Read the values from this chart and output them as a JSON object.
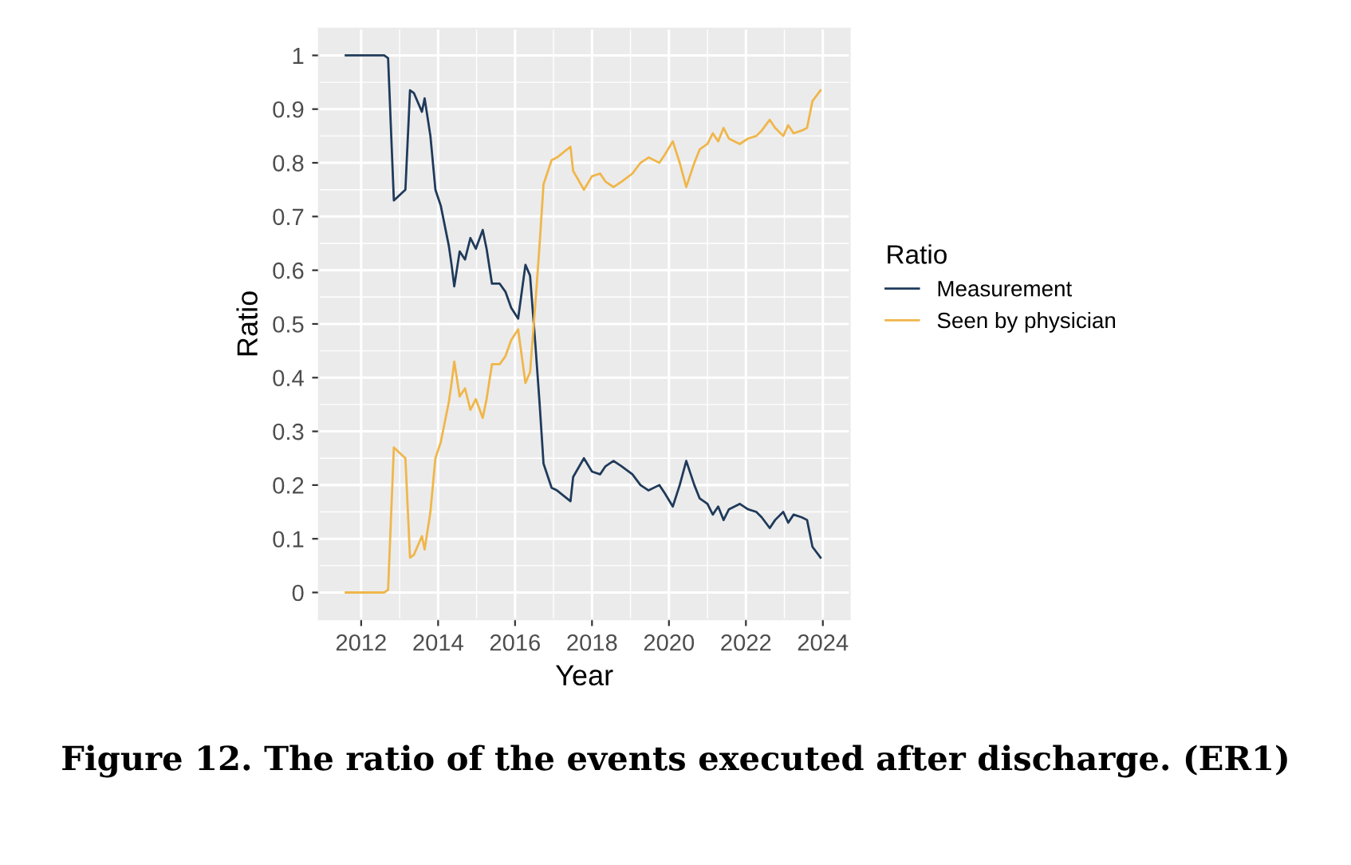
{
  "chart_data": {
    "type": "line",
    "title": "Figure 12. The ratio of the events executed after discharge. (ER1)",
    "xlabel": "Year",
    "ylabel": "Ratio",
    "legend_title": "Ratio",
    "x": [
      2011.6,
      2012.0,
      2012.6,
      2012.7,
      2012.85,
      2013.15,
      2013.27,
      2013.37,
      2013.58,
      2013.65,
      2013.8,
      2013.93,
      2014.07,
      2014.28,
      2014.35,
      2014.42,
      2014.56,
      2014.7,
      2014.84,
      2014.98,
      2015.16,
      2015.26,
      2015.4,
      2015.6,
      2015.75,
      2015.9,
      2016.08,
      2016.27,
      2016.39,
      2016.53,
      2016.64,
      2016.74,
      2016.95,
      2017.09,
      2017.44,
      2017.51,
      2017.79,
      2018.0,
      2018.21,
      2018.35,
      2018.56,
      2018.77,
      2019.05,
      2019.26,
      2019.47,
      2019.75,
      2019.89,
      2020.1,
      2020.28,
      2020.45,
      2020.66,
      2020.8,
      2021.0,
      2021.14,
      2021.28,
      2021.42,
      2021.56,
      2021.84,
      2022.05,
      2022.27,
      2022.41,
      2022.62,
      2022.76,
      2022.97,
      2023.1,
      2023.24,
      2023.45,
      2023.59,
      2023.73,
      2023.94
    ],
    "series": [
      {
        "name": "Measurement",
        "color": "#1f3a5a",
        "values": [
          1.0,
          1.0,
          1.0,
          0.995,
          0.73,
          0.75,
          0.935,
          0.93,
          0.895,
          0.92,
          0.85,
          0.75,
          0.72,
          0.645,
          0.61,
          0.57,
          0.635,
          0.62,
          0.66,
          0.64,
          0.675,
          0.64,
          0.575,
          0.575,
          0.56,
          0.53,
          0.51,
          0.61,
          0.59,
          0.46,
          0.35,
          0.24,
          0.195,
          0.19,
          0.17,
          0.215,
          0.25,
          0.225,
          0.22,
          0.235,
          0.245,
          0.235,
          0.22,
          0.2,
          0.19,
          0.2,
          0.185,
          0.16,
          0.2,
          0.245,
          0.2,
          0.175,
          0.165,
          0.145,
          0.16,
          0.135,
          0.155,
          0.165,
          0.155,
          0.15,
          0.14,
          0.12,
          0.135,
          0.15,
          0.13,
          0.145,
          0.14,
          0.135,
          0.085,
          0.065
        ]
      },
      {
        "name": "Seen by physician",
        "color": "#f0b64a",
        "values": [
          0.0,
          0.0,
          0.0,
          0.005,
          0.27,
          0.25,
          0.065,
          0.07,
          0.105,
          0.08,
          0.15,
          0.25,
          0.28,
          0.355,
          0.39,
          0.43,
          0.365,
          0.38,
          0.34,
          0.36,
          0.325,
          0.36,
          0.425,
          0.425,
          0.44,
          0.47,
          0.49,
          0.39,
          0.41,
          0.54,
          0.65,
          0.76,
          0.805,
          0.81,
          0.83,
          0.785,
          0.75,
          0.775,
          0.78,
          0.765,
          0.755,
          0.765,
          0.78,
          0.8,
          0.81,
          0.8,
          0.815,
          0.84,
          0.8,
          0.755,
          0.8,
          0.825,
          0.835,
          0.855,
          0.84,
          0.865,
          0.845,
          0.835,
          0.845,
          0.85,
          0.86,
          0.88,
          0.865,
          0.85,
          0.87,
          0.855,
          0.86,
          0.865,
          0.915,
          0.935
        ]
      }
    ],
    "xlim": [
      2010.9,
      2024.7
    ],
    "xticks": [
      2012,
      2014,
      2016,
      2018,
      2020,
      2022,
      2024
    ],
    "ylim": [
      -0.05,
      1.05
    ],
    "yticks": [
      0,
      0.1,
      0.2,
      0.3,
      0.4,
      0.5,
      0.6,
      0.7,
      0.8,
      0.9,
      1
    ],
    "grid": true,
    "legend": "right",
    "marker": "none",
    "line_style": "solid"
  }
}
